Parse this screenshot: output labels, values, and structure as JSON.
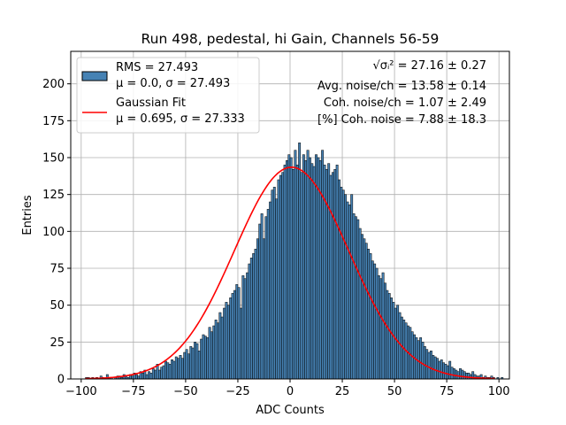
{
  "chart_data": {
    "type": "bar",
    "title": "Run 498, pedestal, hi Gain, Channels 56-59",
    "xlabel": "ADC Counts",
    "ylabel": "Entries",
    "xlim": [
      -105,
      105
    ],
    "ylim": [
      0,
      222
    ],
    "x_ticks": [
      -100,
      -75,
      -50,
      -25,
      0,
      25,
      50,
      75,
      100
    ],
    "y_ticks": [
      0,
      25,
      50,
      75,
      100,
      125,
      150,
      175,
      200
    ],
    "grid": true,
    "legend_position": "upper-left",
    "histogram": {
      "name_lines": [
        "RMS = 27.493",
        "μ = 0.0, σ = 27.493"
      ],
      "bar_color": "#4682b4",
      "edge_color": "#000000",
      "bin_start": -98,
      "bin_width": 1,
      "counts": [
        1,
        1,
        0,
        1,
        0,
        1,
        0,
        2,
        1,
        0,
        3,
        1,
        1,
        0,
        1,
        2,
        2,
        1,
        3,
        2,
        1,
        3,
        2,
        4,
        3,
        2,
        5,
        4,
        6,
        3,
        5,
        4,
        7,
        6,
        10,
        6,
        8,
        9,
        12,
        11,
        10,
        13,
        12,
        15,
        14,
        16,
        14,
        18,
        20,
        17,
        22,
        21,
        25,
        24,
        19,
        27,
        30,
        29,
        28,
        35,
        32,
        36,
        40,
        38,
        45,
        42,
        48,
        52,
        50,
        55,
        58,
        60,
        64,
        62,
        48,
        70,
        68,
        72,
        78,
        82,
        85,
        88,
        95,
        105,
        112,
        95,
        110,
        115,
        120,
        128,
        130,
        122,
        135,
        138,
        140,
        145,
        148,
        152,
        150,
        142,
        155,
        145,
        160,
        140,
        152,
        148,
        155,
        150,
        146,
        144,
        152,
        150,
        148,
        155,
        145,
        142,
        146,
        138,
        140,
        142,
        145,
        135,
        130,
        128,
        125,
        120,
        118,
        125,
        112,
        110,
        108,
        102,
        98,
        95,
        92,
        88,
        85,
        80,
        78,
        75,
        70,
        68,
        72,
        65,
        60,
        58,
        55,
        52,
        48,
        50,
        45,
        42,
        40,
        38,
        36,
        35,
        32,
        30,
        28,
        26,
        28,
        25,
        22,
        20,
        18,
        19,
        16,
        15,
        14,
        12,
        13,
        11,
        10,
        9,
        12,
        8,
        7,
        6,
        5,
        7,
        6,
        5,
        4,
        4,
        3,
        5,
        3,
        2,
        2,
        3,
        1,
        2,
        1,
        1,
        2,
        1,
        0,
        1,
        0,
        1
      ]
    },
    "fit": {
      "name_lines": [
        "Gaussian Fit",
        "μ = 0.695, σ = 27.333"
      ],
      "color": "#ff0000",
      "mu": 0.695,
      "sigma": 27.333,
      "amplitude": 143.5,
      "x_range": [
        -98,
        98
      ]
    },
    "annotations": [
      "√σᵢ² = 27.16 ± 0.27",
      "Avg. noise/ch = 13.58 ± 0.14",
      "Coh. noise/ch = 1.07 ± 2.49",
      "[%] Coh. noise = 7.88 ± 18.3"
    ]
  }
}
